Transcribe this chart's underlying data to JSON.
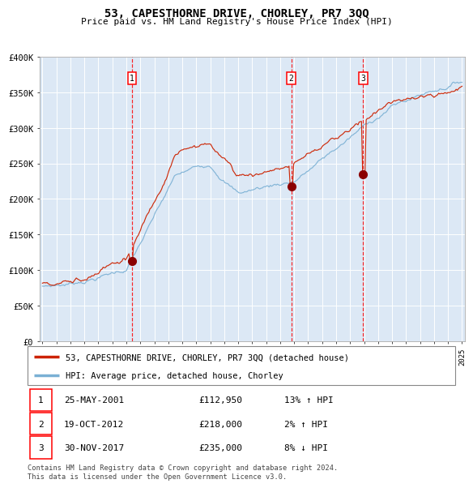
{
  "title": "53, CAPESTHORNE DRIVE, CHORLEY, PR7 3QQ",
  "subtitle": "Price paid vs. HM Land Registry's House Price Index (HPI)",
  "x_start_year": 1995,
  "x_end_year": 2025,
  "ylim": [
    0,
    400000
  ],
  "yticks": [
    0,
    50000,
    100000,
    150000,
    200000,
    250000,
    300000,
    350000,
    400000
  ],
  "ytick_labels": [
    "£0",
    "£50K",
    "£100K",
    "£150K",
    "£200K",
    "£250K",
    "£300K",
    "£350K",
    "£400K"
  ],
  "sale_prices": [
    112950,
    218000,
    235000
  ],
  "sale_labels": [
    "1",
    "2",
    "3"
  ],
  "sale_hpi_pct": [
    "13% ↑ HPI",
    "2% ↑ HPI",
    "8% ↓ HPI"
  ],
  "sale_date_strs": [
    "25-MAY-2001",
    "19-OCT-2012",
    "30-NOV-2017"
  ],
  "sale_price_strs": [
    "£112,950",
    "£218,000",
    "£235,000"
  ],
  "line_color_red": "#cc2200",
  "line_color_blue": "#7ab0d4",
  "dot_color": "#8b0000",
  "bg_color": "#dce8f5",
  "grid_color": "#ffffff",
  "legend_line1": "53, CAPESTHORNE DRIVE, CHORLEY, PR7 3QQ (detached house)",
  "legend_line2": "HPI: Average price, detached house, Chorley",
  "footer": "Contains HM Land Registry data © Crown copyright and database right 2024.\nThis data is licensed under the Open Government Licence v3.0.",
  "sale_dates_dec": [
    2001.4,
    2012.8,
    2017.92
  ]
}
